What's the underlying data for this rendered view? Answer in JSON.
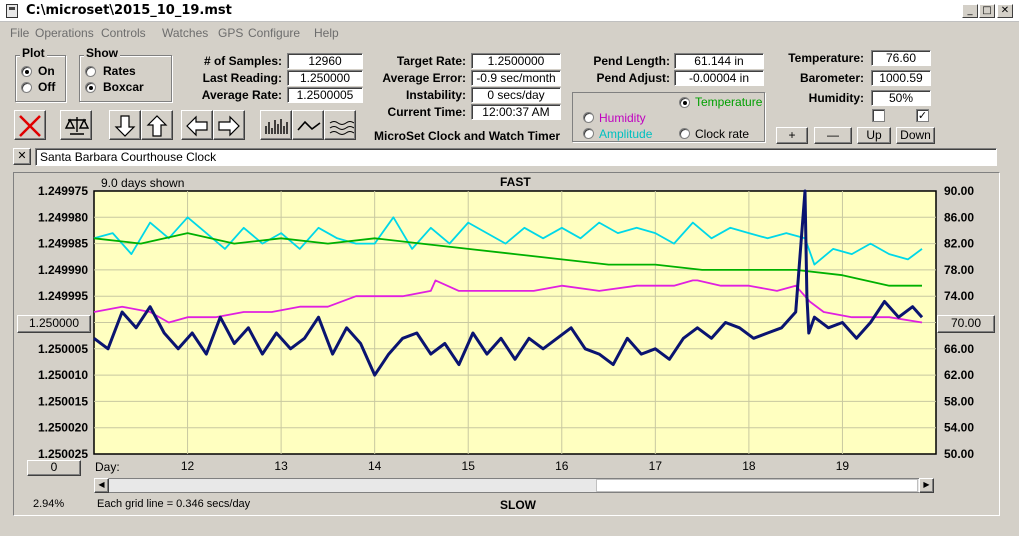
{
  "window": {
    "title": "C:\\microset\\2015_10_19.mst",
    "min": "_",
    "max": "□",
    "close": "✕"
  },
  "menu": [
    "File",
    "Operations",
    "Controls",
    "Watches",
    "GPS",
    "Configure",
    "Help"
  ],
  "plot_group": {
    "title": "Plot",
    "options": [
      {
        "label": "On",
        "selected": true
      },
      {
        "label": "Off",
        "selected": false
      }
    ]
  },
  "show_group": {
    "title": "Show",
    "options": [
      {
        "label": "Rates",
        "selected": false
      },
      {
        "label": "Boxcar",
        "selected": true
      }
    ]
  },
  "stats1": [
    {
      "label": "# of Samples:",
      "value": "12960"
    },
    {
      "label": "Last Reading:",
      "value": "1.250000"
    },
    {
      "label": "Average Rate:",
      "value": "1.2500005"
    }
  ],
  "stats2": [
    {
      "label": "Target Rate:",
      "value": "1.2500000"
    },
    {
      "label": "Average Error:",
      "value": "-0.9 sec/month"
    },
    {
      "label": "Instability:",
      "value": "0 secs/day"
    },
    {
      "label": "Current Time:",
      "value": "12:00:37 AM"
    }
  ],
  "pend": [
    {
      "label": "Pend Length:",
      "value": "61.144 in"
    },
    {
      "label": "Pend Adjust:",
      "value": "-0.00004 in"
    }
  ],
  "env": [
    {
      "label": "Temperature:",
      "value": "76.60"
    },
    {
      "label": "Barometer:",
      "value": "1000.59"
    },
    {
      "label": "Humidity:",
      "value": "50%"
    }
  ],
  "app_caption": "MicroSet Clock and Watch Timer",
  "right_axis_options": [
    {
      "label": "Temperature",
      "selected": true,
      "color": "#00a000"
    },
    {
      "label": "Humidity",
      "selected": false,
      "color": "#c000c0"
    },
    {
      "label": "Amplitude",
      "selected": false,
      "color": "#00c0c0"
    },
    {
      "label": "Clock rate",
      "selected": false,
      "color": "#000000"
    }
  ],
  "checkboxes": [
    {
      "checked": false,
      "mark": ""
    },
    {
      "checked": true,
      "mark": "✓"
    }
  ],
  "axis_buttons": [
    "+",
    "—",
    "Up",
    "Down"
  ],
  "clock_name": "Santa Barbara Courthouse Clock",
  "clear_btn": "✕",
  "graph": {
    "days_shown": "9.0 days shown",
    "top_label": "FAST",
    "bottom_label": "SLOW",
    "grid_note": "Each grid line = 0.346 secs/day",
    "percent": "2.94%",
    "left_center_btn": "1.250000",
    "right_center_btn": "70.00",
    "left_bottom_btn": "0",
    "day_label": "Day:"
  },
  "chart_data": {
    "type": "line",
    "grid": true,
    "background": "#ffffc0",
    "xlabel": "Day:",
    "x_ticks": [
      "12",
      "13",
      "14",
      "15",
      "16",
      "17",
      "18",
      "19"
    ],
    "xlim": [
      11.0,
      20.0
    ],
    "y_left_ticks": [
      "1.249975",
      "1.249980",
      "1.249985",
      "1.249990",
      "1.249995",
      "1.250000",
      "1.250005",
      "1.250010",
      "1.250015",
      "1.250020",
      "1.250025"
    ],
    "y_left_range": [
      1.249975,
      1.250025
    ],
    "y_left_inverted": true,
    "y_right_ticks": [
      "90.00",
      "86.00",
      "82.00",
      "78.00",
      "74.00",
      "70.00",
      "66.00",
      "62.00",
      "58.00",
      "54.00",
      "50.00"
    ],
    "y_right_range": [
      50,
      90
    ],
    "series": [
      {
        "color": "#0a1470",
        "axis": "left",
        "width": 3,
        "x": [
          11.0,
          11.15,
          11.3,
          11.45,
          11.6,
          11.75,
          11.9,
          12.05,
          12.2,
          12.35,
          12.5,
          12.65,
          12.8,
          12.95,
          13.1,
          13.25,
          13.4,
          13.55,
          13.7,
          13.85,
          14.0,
          14.15,
          14.3,
          14.45,
          14.6,
          14.75,
          14.9,
          15.05,
          15.2,
          15.35,
          15.5,
          15.65,
          15.8,
          15.95,
          16.1,
          16.25,
          16.4,
          16.55,
          16.7,
          16.85,
          17.0,
          17.15,
          17.3,
          17.45,
          17.6,
          17.75,
          17.9,
          18.05,
          18.2,
          18.35,
          18.5,
          18.6,
          18.62,
          18.64,
          18.7,
          18.85,
          19.0,
          19.15,
          19.3,
          19.45,
          19.6,
          19.75,
          19.85
        ],
        "values": [
          1.250003,
          1.250005,
          1.249998,
          1.250001,
          1.249997,
          1.250002,
          1.250005,
          1.250002,
          1.250006,
          1.249999,
          1.250004,
          1.250001,
          1.250006,
          1.250002,
          1.250005,
          1.250003,
          1.249999,
          1.250006,
          1.250001,
          1.250004,
          1.25001,
          1.250006,
          1.250003,
          1.250002,
          1.250006,
          1.250004,
          1.250008,
          1.250002,
          1.250006,
          1.250003,
          1.250007,
          1.250003,
          1.250005,
          1.250003,
          1.250001,
          1.250005,
          1.250006,
          1.250008,
          1.250003,
          1.250006,
          1.250005,
          1.250007,
          1.250003,
          1.250001,
          1.250003,
          1.25,
          1.250001,
          1.250003,
          1.250002,
          1.250001,
          1.249998,
          1.249975,
          1.249995,
          1.250002,
          1.249999,
          1.250001,
          1.25,
          1.250003,
          1.25,
          1.249996,
          1.249999,
          1.249997,
          1.249999
        ]
      },
      {
        "color": "#00d8e8",
        "axis": "left",
        "width": 1.8,
        "x": [
          11.0,
          11.2,
          11.4,
          11.6,
          11.8,
          12.0,
          12.2,
          12.4,
          12.6,
          12.8,
          13.0,
          13.2,
          13.4,
          13.6,
          13.8,
          14.0,
          14.2,
          14.4,
          14.6,
          14.8,
          15.0,
          15.2,
          15.4,
          15.6,
          15.8,
          16.0,
          16.2,
          16.4,
          16.6,
          16.8,
          17.0,
          17.2,
          17.4,
          17.6,
          17.8,
          18.0,
          18.2,
          18.4,
          18.6,
          18.7,
          18.9,
          19.1,
          19.3,
          19.5,
          19.7,
          19.85
        ],
        "values": [
          1.249984,
          1.249983,
          1.249987,
          1.249981,
          1.249984,
          1.24998,
          1.249983,
          1.249986,
          1.249982,
          1.249985,
          1.249983,
          1.249986,
          1.249982,
          1.249984,
          1.249985,
          1.249985,
          1.24998,
          1.249986,
          1.249982,
          1.249985,
          1.249981,
          1.249983,
          1.249985,
          1.249982,
          1.249984,
          1.249982,
          1.249984,
          1.249981,
          1.249983,
          1.249982,
          1.249983,
          1.249985,
          1.249981,
          1.249984,
          1.249982,
          1.249983,
          1.249984,
          1.249983,
          1.249984,
          1.249989,
          1.249986,
          1.249987,
          1.249985,
          1.249987,
          1.249988,
          1.249986
        ]
      },
      {
        "color": "#00b000",
        "axis": "left",
        "width": 1.8,
        "x": [
          11.0,
          11.5,
          12.0,
          12.5,
          13.0,
          13.5,
          14.0,
          14.5,
          15.0,
          15.5,
          16.0,
          16.5,
          17.0,
          17.5,
          18.0,
          18.5,
          19.0,
          19.5,
          19.7,
          19.85
        ],
        "values": [
          1.249984,
          1.249985,
          1.249983,
          1.249985,
          1.249984,
          1.249985,
          1.249984,
          1.249985,
          1.249986,
          1.249987,
          1.249988,
          1.249989,
          1.249989,
          1.24999,
          1.24999,
          1.24999,
          1.249991,
          1.249993,
          1.249993,
          1.249993
        ]
      },
      {
        "color": "#e020e0",
        "axis": "left",
        "width": 1.8,
        "x": [
          11.0,
          11.3,
          11.6,
          11.8,
          12.0,
          12.3,
          12.6,
          12.9,
          13.2,
          13.5,
          13.8,
          14.0,
          14.3,
          14.6,
          14.65,
          14.9,
          15.3,
          15.7,
          16.0,
          16.4,
          16.8,
          17.2,
          17.4,
          17.45,
          17.7,
          18.0,
          18.3,
          18.5,
          18.65,
          18.8,
          19.1,
          19.5,
          19.85
        ],
        "values": [
          1.249998,
          1.249997,
          1.249998,
          1.25,
          1.249999,
          1.249999,
          1.249998,
          1.249998,
          1.249997,
          1.249997,
          1.249995,
          1.249995,
          1.249995,
          1.249994,
          1.249992,
          1.249994,
          1.249994,
          1.249994,
          1.249993,
          1.249994,
          1.249993,
          1.249993,
          1.249992,
          1.249992,
          1.249993,
          1.249993,
          1.249994,
          1.249993,
          1.249996,
          1.249998,
          1.249999,
          1.249999,
          1.25
        ]
      }
    ]
  }
}
